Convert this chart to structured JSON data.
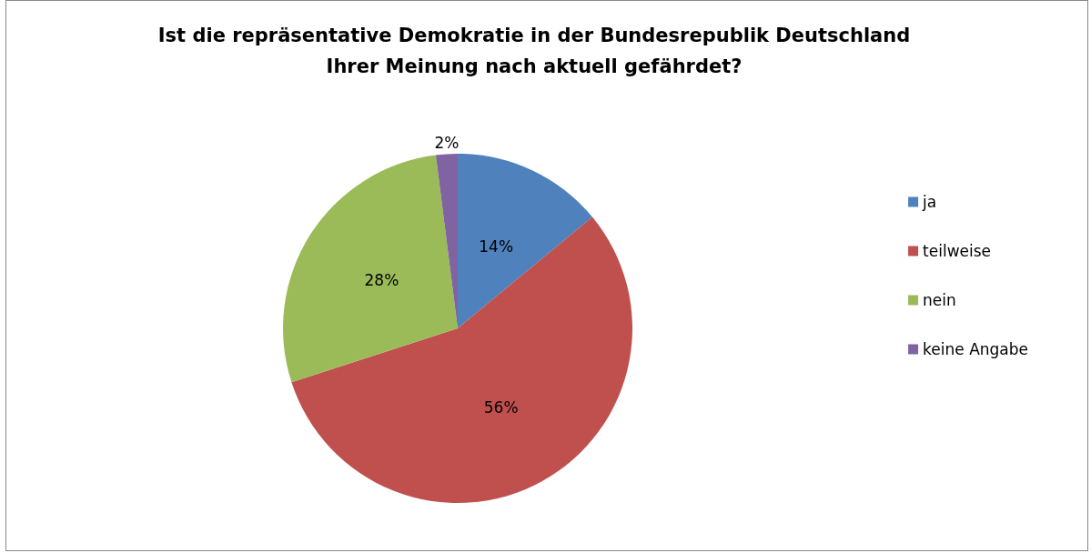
{
  "chart_data": {
    "type": "pie",
    "title": "Ist die repräsentative Demokratie in der Bundesrepublik Deutschland\nIhrer Meinung nach aktuell gefährdet?",
    "categories": [
      "ja",
      "teilweise",
      "nein",
      "keine Angabe"
    ],
    "values": [
      14,
      56,
      28,
      2
    ],
    "colors": [
      "#4f81bd",
      "#c0504d",
      "#9bbb59",
      "#8064a2"
    ],
    "value_labels": [
      "14%",
      "56%",
      "28%",
      "2%"
    ],
    "legend": "right"
  }
}
